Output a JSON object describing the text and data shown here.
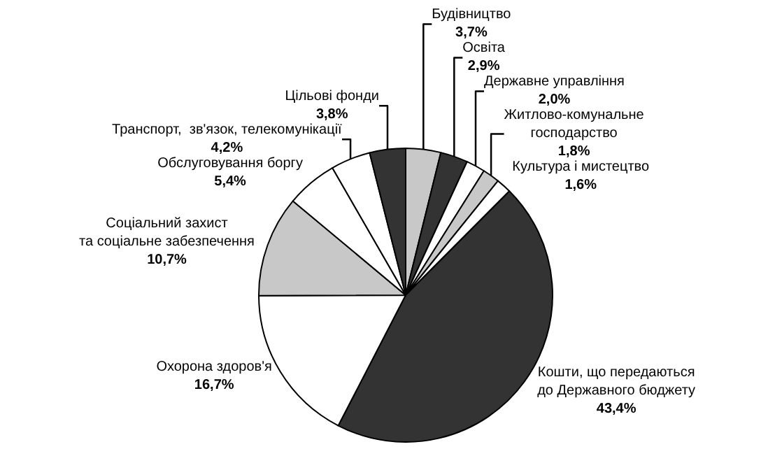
{
  "chart_data": {
    "type": "pie",
    "categories": [
      "Будівництво",
      "Освіта",
      "Державне управління",
      "Житлово-комунальне\nгосподарство",
      "Культура і мистецтво",
      "Кошти, що передаються\nдо Державного бюджету",
      "Охорона здоров'я",
      "Соціальний захист\nта соціальне забезпечення",
      "Обслуговування боргу",
      "Транспорт,  зв'язок, телекомунікації",
      "Цільові фонди"
    ],
    "values": [
      3.7,
      2.9,
      2.0,
      1.8,
      1.6,
      43.4,
      16.7,
      10.7,
      5.4,
      4.2,
      3.8
    ],
    "value_labels": [
      "3,7%",
      "2,9%",
      "2,0%",
      "1,8%",
      "1,6%",
      "43,4%",
      "16,7%",
      "10,7%",
      "5,4%",
      "4,2%",
      "3,8%"
    ],
    "colors": [
      "#c8c8c8",
      "#333333",
      "#ffffff",
      "#c8c8c8",
      "#ffffff",
      "#333333",
      "#ffffff",
      "#c8c8c8",
      "#ffffff",
      "#ffffff",
      "#333333"
    ],
    "legend": false
  }
}
